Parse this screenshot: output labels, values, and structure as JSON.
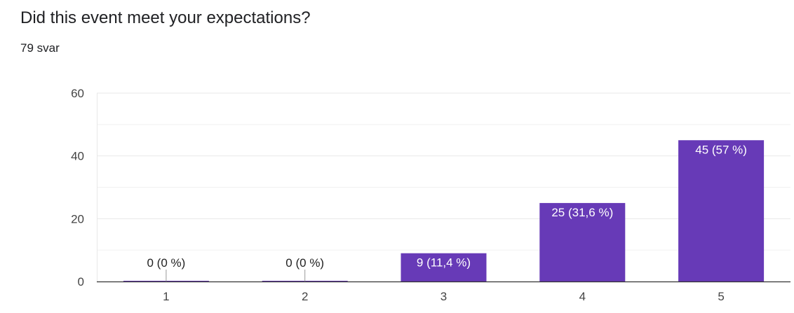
{
  "question": {
    "title": "Did this event meet your expectations?",
    "response_count": "79 svar"
  },
  "colors": {
    "bar": "#673ab7",
    "grid": "#e8e8e8",
    "axis": "#333333",
    "tick_text": "#444444",
    "bar_label_inside": "#ffffff",
    "bar_label_outside": "#222222",
    "zero_marker": "#999999"
  },
  "chart_data": {
    "type": "bar",
    "title": "",
    "xlabel": "",
    "ylabel": "",
    "categories": [
      "1",
      "2",
      "3",
      "4",
      "5"
    ],
    "values": [
      0,
      0,
      9,
      25,
      45
    ],
    "data_labels": [
      "0 (0 %)",
      "0 (0 %)",
      "9 (11,4 %)",
      "25 (31,6 %)",
      "45 (57 %)"
    ],
    "ylim": [
      0,
      60
    ],
    "yticks": [
      0,
      20,
      40,
      60
    ],
    "yticks_labels": [
      "0",
      "20",
      "40",
      "60"
    ],
    "minor_grid": [
      10,
      30,
      50
    ],
    "grid": true,
    "legend": "none"
  }
}
